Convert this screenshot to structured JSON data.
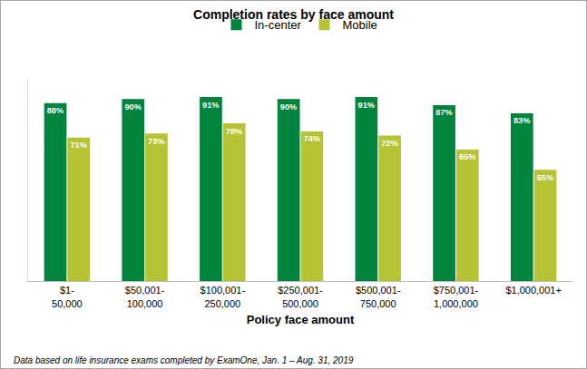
{
  "chart_data": {
    "type": "bar",
    "title": "Completion rates by face amount",
    "xlabel": "Policy face amount",
    "annotations": [
      "Data based on life insurance exams completed by ExamOne, Jan. 1 – Aug. 31, 2019"
    ],
    "categories": [
      "$1-50,000",
      "$50,001-100,000",
      "$100,001-250,000",
      "$250,001-500,000",
      "$500,001-750,000",
      "$750,001-1,000,000",
      "$1,000,001+"
    ],
    "series": [
      {
        "name": "In-center",
        "color": "#00843d",
        "values": [
          88,
          90,
          91,
          90,
          91,
          87,
          83
        ],
        "value_labels": [
          "88%",
          "90%",
          "91%",
          "90%",
          "91%",
          "87%",
          "83%"
        ]
      },
      {
        "name": "Mobile",
        "color": "#b5c334",
        "values": [
          71,
          73,
          78,
          74,
          72,
          65,
          55
        ],
        "value_labels": [
          "71%",
          "73%",
          "78%",
          "74%",
          "72%",
          "65%",
          "55%"
        ]
      }
    ],
    "ylim": [
      0,
      100
    ],
    "grid": false,
    "legend": "top",
    "data_labels": true,
    "tick_labels": "x"
  }
}
